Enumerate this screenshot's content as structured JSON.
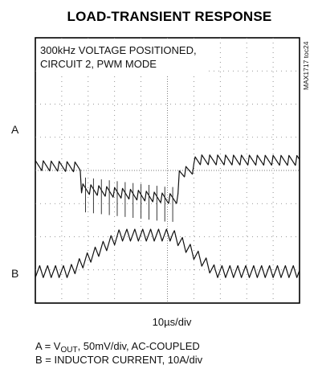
{
  "chart_data": {
    "type": "line",
    "title": "LOAD-TRANSIENT RESPONSE",
    "annotation": [
      "300kHz VOLTAGE POSITIONED,",
      "CIRCUIT 2, PWM MODE"
    ],
    "side_id": "MAX1717 toc24",
    "x_scale": "10µs/div",
    "grid": true,
    "divisions": {
      "x": 10,
      "y": 8
    },
    "series": [
      {
        "name": "A",
        "axis_label": "A",
        "description_parts": {
          "prefix": "A = V",
          "sub": "OUT",
          "suffix": ", 50mV/div, AC-COUPLED"
        },
        "unit_per_div": "50mV/div",
        "points": [
          [
            0,
            0.15
          ],
          [
            1.7,
            0.1
          ],
          [
            1.75,
            -0.55
          ],
          [
            5.0,
            -0.85
          ],
          [
            5.4,
            -0.85
          ],
          [
            5.45,
            -0.1
          ],
          [
            6.0,
            0.05
          ],
          [
            6.05,
            0.32
          ],
          [
            10,
            0.3
          ]
        ],
        "ripple_amp_div": 0.15,
        "ripple_period_div": 0.3
      },
      {
        "name": "B",
        "axis_label": "B",
        "description_parts": {
          "prefix": "B = INDUCTOR CURRENT, 10A/div",
          "sub": "",
          "suffix": ""
        },
        "unit_per_div": "10A/div",
        "points": [
          [
            0,
            -3.05
          ],
          [
            1.3,
            -3.05
          ],
          [
            3.2,
            -1.95
          ],
          [
            5.2,
            -1.95
          ],
          [
            6.8,
            -3.05
          ],
          [
            10,
            -3.05
          ]
        ],
        "ripple_amp_div": 0.18,
        "ripple_period_div": 0.3
      }
    ],
    "footer": [
      {
        "prefix": "A = V",
        "sub": "OUT",
        "suffix": ", 50mV/div, AC-COUPLED"
      },
      {
        "prefix": "B = INDUCTOR CURRENT, 10A/div",
        "sub": "",
        "suffix": ""
      }
    ]
  }
}
